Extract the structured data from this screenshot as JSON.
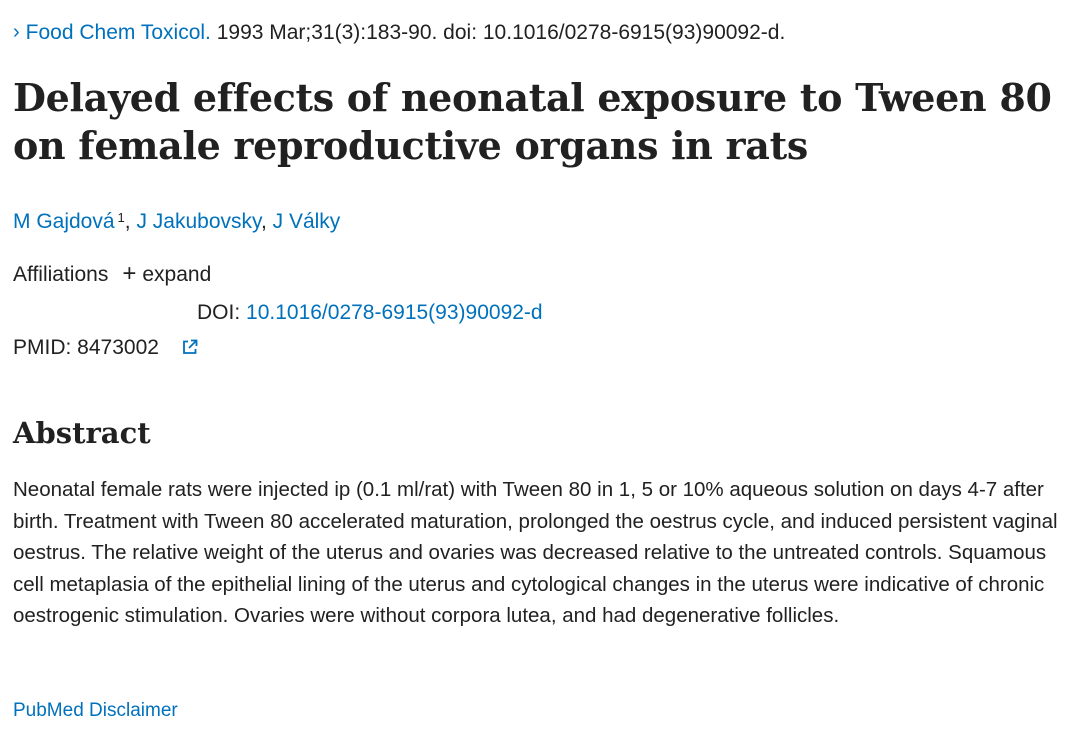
{
  "citation": {
    "journal": "Food Chem Toxicol.",
    "details": " 1993 Mar;31(3):183-90. doi: 10.1016/0278-6915(93)90092-d."
  },
  "title": "Delayed effects of neonatal exposure to Tween 80 on female reproductive organs in rats",
  "authors": [
    {
      "name": "M Gajdová",
      "affiliation_ref": "1"
    },
    {
      "name": "J Jakubovsky"
    },
    {
      "name": "J Války"
    }
  ],
  "affiliations": {
    "label": "Affiliations",
    "toggle_label": "expand"
  },
  "identifiers": {
    "doi_label": "DOI: ",
    "doi_value": "10.1016/0278-6915(93)90092-d",
    "pmid_label": "PMID: 8473002"
  },
  "abstract": {
    "heading": "Abstract",
    "text": "Neonatal female rats were injected ip (0.1 ml/rat) with Tween 80 in 1, 5 or 10% aqueous solution on days 4-7 after birth. Treatment with Tween 80 accelerated maturation, prolonged the oestrus cycle, and induced persistent vaginal oestrus. The relative weight of the uterus and ovaries was decreased relative to the untreated controls. Squamous cell metaplasia of the epithelial lining of the uterus and cytological changes in the uterus were indicative of chronic oestrogenic stimulation. Ovaries were without corpora lutea, and had degenerative follicles."
  },
  "disclaimer_label": "PubMed Disclaimer",
  "icons": {
    "journal_chevron": "chevron-right-icon",
    "affiliations_toggle": "plus-icon",
    "pmid_external": "external-link-icon"
  },
  "colors": {
    "link": "#0071bc",
    "text": "#212121"
  }
}
